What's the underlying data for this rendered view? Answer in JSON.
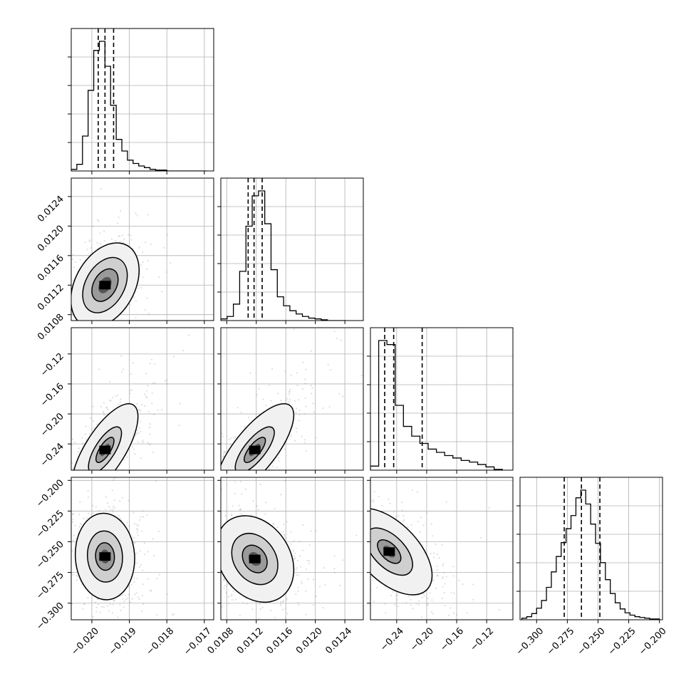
{
  "chart_data": {
    "type": "corner",
    "title": "",
    "colors": {
      "line": "#000000",
      "grid": "#b0b0b0",
      "points": "#888888",
      "density_dark": "#000000"
    },
    "grid": true,
    "parameters": [
      {
        "index": 0,
        "range": [
          -0.02055,
          -0.01675
        ],
        "ticks": [
          -0.02,
          -0.019,
          -0.018,
          -0.017
        ],
        "tick_labels": [
          "−0.020",
          "−0.019",
          "−0.018",
          "−0.017"
        ],
        "quantiles": [
          -0.01983,
          -0.01965,
          -0.01942
        ],
        "hist_bins": [
          -0.02055,
          -0.0204,
          -0.02025,
          -0.0201,
          -0.01995,
          -0.0198,
          -0.01965,
          -0.0195,
          -0.01935,
          -0.0192,
          -0.01905,
          -0.0189,
          -0.01875,
          -0.0186,
          -0.01845,
          -0.0183,
          -0.01815,
          -0.018,
          -0.01785,
          -0.0177,
          -0.01755,
          -0.0174,
          -0.01725,
          -0.0171,
          -0.01695
        ],
        "hist_counts": [
          2,
          8,
          42,
          97,
          145,
          156,
          126,
          79,
          38,
          24,
          13,
          9,
          6,
          4,
          2,
          1,
          1,
          0,
          0,
          0,
          0,
          0,
          0,
          0
        ]
      },
      {
        "index": 1,
        "range": [
          0.01072,
          0.01265
        ],
        "ticks": [
          0.0108,
          0.0112,
          0.0116,
          0.012,
          0.0124
        ],
        "tick_labels": [
          "0.0108",
          "0.0112",
          "0.0116",
          "0.0120",
          "0.0124"
        ],
        "quantiles": [
          0.01109,
          0.01117,
          0.01128
        ],
        "hist_bins": [
          0.01072,
          0.010805,
          0.01089,
          0.010975,
          0.01106,
          0.011145,
          0.01123,
          0.011315,
          0.0114,
          0.011485,
          0.01157,
          0.011655,
          0.01174,
          0.011825,
          0.01191,
          0.011995,
          0.01208,
          0.012165,
          0.01225,
          0.012335,
          0.01242
        ],
        "hist_counts": [
          2,
          5,
          20,
          60,
          115,
          152,
          158,
          118,
          62,
          29,
          18,
          12,
          8,
          5,
          3,
          2,
          1,
          0,
          0,
          0
        ]
      },
      {
        "index": 2,
        "range": [
          -0.275,
          -0.085
        ],
        "ticks": [
          -0.24,
          -0.2,
          -0.16,
          -0.12
        ],
        "tick_labels": [
          "−0.24",
          "−0.20",
          "−0.16",
          "−0.12"
        ],
        "quantiles": [
          -0.256,
          -0.244,
          -0.206
        ],
        "hist_bins": [
          -0.275,
          -0.264,
          -0.253,
          -0.242,
          -0.231,
          -0.22,
          -0.209,
          -0.198,
          -0.187,
          -0.176,
          -0.165,
          -0.154,
          -0.143,
          -0.132,
          -0.121,
          -0.11,
          -0.099
        ],
        "hist_counts": [
          5,
          160,
          155,
          80,
          54,
          42,
          33,
          26,
          22,
          18,
          15,
          12,
          10,
          7,
          4,
          1
        ]
      },
      {
        "index": 3,
        "range": [
          -0.3135,
          -0.1975
        ],
        "ticks": [
          -0.3,
          -0.275,
          -0.25,
          -0.225,
          -0.2
        ],
        "tick_labels": [
          "−0.300",
          "−0.275",
          "−0.250",
          "−0.225",
          "−0.200"
        ],
        "quantiles": [
          -0.2775,
          -0.2635,
          -0.2485
        ],
        "hist_bins": [
          -0.312,
          -0.308,
          -0.304,
          -0.3,
          -0.296,
          -0.292,
          -0.288,
          -0.284,
          -0.28,
          -0.276,
          -0.272,
          -0.268,
          -0.264,
          -0.26,
          -0.256,
          -0.252,
          -0.248,
          -0.244,
          -0.24,
          -0.236,
          -0.232,
          -0.228,
          -0.224,
          -0.22,
          -0.216,
          -0.212,
          -0.208,
          -0.204,
          -0.2
        ],
        "hist_counts": [
          2,
          4,
          8,
          15,
          25,
          42,
          62,
          82,
          100,
          118,
          135,
          158,
          168,
          150,
          124,
          99,
          74,
          52,
          34,
          22,
          14,
          9,
          6,
          4,
          3,
          2,
          1,
          1
        ]
      }
    ],
    "pair_distributions": [
      {
        "row": 1,
        "col": 0,
        "center": [
          -0.01965,
          0.0112
        ],
        "spread": [
          0.00035,
          0.00022
        ],
        "corr": 0.35,
        "contour_scale": [
          1.0,
          1.7,
          2.6
        ]
      },
      {
        "row": 2,
        "col": 0,
        "center": [
          -0.01965,
          -0.248
        ],
        "spread": [
          0.0004,
          0.028
        ],
        "corr": 0.72,
        "contour_scale": [
          0.6,
          1.1,
          2.2
        ]
      },
      {
        "row": 2,
        "col": 1,
        "center": [
          0.01118,
          -0.248
        ],
        "spread": [
          0.00024,
          0.028
        ],
        "corr": 0.75,
        "contour_scale": [
          0.6,
          1.1,
          2.2
        ]
      },
      {
        "row": 3,
        "col": 0,
        "center": [
          -0.01965,
          -0.262
        ],
        "spread": [
          0.00036,
          0.016
        ],
        "corr": -0.05,
        "contour_scale": [
          0.7,
          1.3,
          2.2
        ]
      },
      {
        "row": 3,
        "col": 1,
        "center": [
          0.01118,
          -0.264
        ],
        "spread": [
          0.00024,
          0.016
        ],
        "corr": -0.25,
        "contour_scale": [
          0.7,
          1.3,
          2.2
        ]
      },
      {
        "row": 3,
        "col": 2,
        "center": [
          -0.25,
          -0.258
        ],
        "spread": [
          0.026,
          0.016
        ],
        "corr": -0.55,
        "contour_scale": [
          0.6,
          1.2,
          2.2
        ]
      }
    ]
  }
}
